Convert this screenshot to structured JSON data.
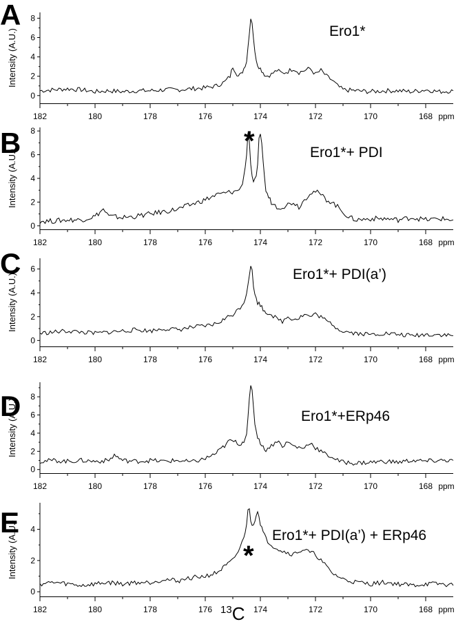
{
  "chart_data": [
    {
      "type": "line",
      "panel": "A",
      "title": "Ero1*",
      "ylabel": "Intensity (A.U.)",
      "x_unit": "ppm",
      "xlim": [
        182,
        167
      ],
      "ylim": [
        -0.8,
        8.6
      ],
      "yticks": [
        0,
        2,
        4,
        6,
        8
      ],
      "xticks": [
        182,
        180,
        178,
        176,
        174,
        172,
        170,
        168
      ],
      "marker": "",
      "series": [
        {
          "x": [
            182,
            181.5,
            181,
            180.5,
            180,
            179.5,
            179,
            178.5,
            178,
            177.5,
            177,
            176.5,
            176,
            175.6,
            175.3,
            175.1,
            175.0,
            174.9,
            174.8,
            174.7,
            174.6,
            174.5,
            174.45,
            174.4,
            174.35,
            174.3,
            174.25,
            174.2,
            174.1,
            174.0,
            173.9,
            173.8,
            173.6,
            173.4,
            173.2,
            173.0,
            172.8,
            172.6,
            172.4,
            172.2,
            172.0,
            171.8,
            171.6,
            171.4,
            171.2,
            171.0,
            170.5,
            170,
            169.5,
            169,
            168.5,
            168,
            167.5,
            167
          ],
          "y": [
            0.5,
            0.6,
            0.7,
            0.6,
            0.4,
            0.5,
            0.4,
            0.5,
            0.5,
            0.6,
            0.6,
            0.7,
            0.8,
            1.0,
            1.4,
            2.0,
            3.0,
            2.5,
            2.0,
            2.2,
            2.8,
            3.6,
            5.0,
            6.6,
            8.0,
            7.6,
            6.0,
            4.4,
            3.2,
            2.8,
            2.4,
            2.0,
            2.2,
            2.6,
            2.3,
            2.5,
            2.8,
            2.4,
            2.6,
            2.8,
            2.2,
            2.6,
            2.0,
            1.6,
            1.0,
            0.6,
            0.5,
            0.4,
            0.5,
            0.5,
            0.4,
            0.6,
            0.4,
            0.5
          ]
        }
      ]
    },
    {
      "type": "line",
      "panel": "B",
      "title": "Ero1*+ PDI",
      "ylabel": "Intensity (A.U.)",
      "x_unit": "ppm",
      "xlim": [
        182,
        167
      ],
      "ylim": [
        -0.3,
        8.3
      ],
      "yticks": [
        0,
        2,
        4,
        6,
        8
      ],
      "xticks": [
        182,
        180,
        178,
        176,
        174,
        172,
        170,
        168
      ],
      "marker": "*",
      "series": [
        {
          "x": [
            182,
            181.5,
            181,
            180.5,
            180,
            179.7,
            179.5,
            179,
            178.5,
            178,
            177.5,
            177,
            176.5,
            176.0,
            175.6,
            175.2,
            174.9,
            174.7,
            174.6,
            174.5,
            174.45,
            174.4,
            174.35,
            174.3,
            174.25,
            174.2,
            174.15,
            174.1,
            174.05,
            174.0,
            173.95,
            173.9,
            173.85,
            173.8,
            173.7,
            173.6,
            173.4,
            173.2,
            173.0,
            172.8,
            172.6,
            172.4,
            172.2,
            172.0,
            171.8,
            171.6,
            171.4,
            171.2,
            171.0,
            170.8,
            170.5,
            170,
            169.5,
            169,
            168.5,
            168,
            167.5,
            167
          ],
          "y": [
            0.4,
            0.4,
            0.5,
            0.5,
            0.8,
            1.4,
            0.8,
            0.7,
            0.8,
            1.0,
            1.2,
            1.4,
            1.8,
            2.2,
            2.6,
            2.8,
            2.9,
            3.2,
            4.2,
            6.0,
            7.8,
            7.2,
            5.0,
            4.0,
            3.8,
            3.8,
            4.0,
            5.0,
            7.2,
            7.9,
            7.0,
            5.5,
            4.0,
            3.0,
            2.4,
            2.0,
            1.6,
            1.6,
            1.8,
            2.0,
            1.6,
            2.2,
            2.8,
            2.9,
            2.6,
            2.2,
            2.0,
            1.6,
            1.2,
            0.7,
            0.5,
            0.6,
            0.6,
            0.5,
            0.7,
            0.5,
            0.6,
            0.5
          ]
        }
      ]
    },
    {
      "type": "line",
      "panel": "C",
      "title": "Ero1*+ PDI(a’)",
      "ylabel": "Intensity (A.U.)",
      "x_unit": "ppm",
      "xlim": [
        182,
        167
      ],
      "ylim": [
        -0.5,
        6.9
      ],
      "yticks": [
        0,
        2,
        4,
        6
      ],
      "xticks": [
        182,
        180,
        178,
        176,
        174,
        172,
        170,
        168
      ],
      "marker": "",
      "series": [
        {
          "x": [
            182,
            181.5,
            181,
            180.5,
            180,
            179.5,
            179,
            178.5,
            178,
            177.5,
            177,
            176.5,
            176,
            175.6,
            175.3,
            175.0,
            174.8,
            174.6,
            174.5,
            174.4,
            174.35,
            174.3,
            174.25,
            174.2,
            174.1,
            174.0,
            173.9,
            173.8,
            173.6,
            173.4,
            173.2,
            173.0,
            172.8,
            172.6,
            172.4,
            172.2,
            172.0,
            171.8,
            171.6,
            171.4,
            171.2,
            171.0,
            170.5,
            170,
            169.5,
            169,
            168.5,
            168,
            167.5,
            167
          ],
          "y": [
            0.6,
            0.7,
            0.8,
            0.7,
            0.6,
            0.7,
            0.8,
            0.9,
            0.8,
            1.0,
            0.9,
            1.1,
            1.2,
            1.4,
            1.8,
            2.2,
            2.6,
            3.2,
            4.0,
            5.6,
            6.3,
            5.8,
            4.6,
            3.8,
            3.2,
            3.0,
            2.6,
            2.4,
            2.2,
            1.8,
            1.6,
            2.0,
            1.8,
            1.9,
            2.2,
            2.0,
            2.2,
            2.0,
            1.6,
            1.4,
            1.0,
            0.8,
            0.6,
            0.5,
            0.6,
            0.5,
            0.4,
            0.5,
            0.5,
            0.4
          ]
        }
      ]
    },
    {
      "type": "line",
      "panel": "D",
      "title": "Ero1*+ERp46",
      "ylabel": "Intensity (A.U.)",
      "x_unit": "ppm",
      "xlim": [
        182,
        167
      ],
      "ylim": [
        -0.4,
        9.6
      ],
      "yticks": [
        0,
        2,
        4,
        6,
        8
      ],
      "xticks": [
        182,
        180,
        178,
        176,
        174,
        172,
        170,
        168
      ],
      "marker": "",
      "series": [
        {
          "x": [
            182,
            181.5,
            181,
            180.5,
            180,
            179.5,
            179.3,
            179,
            178.5,
            178,
            177.5,
            177,
            176.5,
            176,
            175.6,
            175.3,
            175.1,
            174.9,
            174.7,
            174.6,
            174.5,
            174.45,
            174.4,
            174.35,
            174.3,
            174.25,
            174.2,
            174.1,
            174.0,
            173.9,
            173.8,
            173.6,
            173.4,
            173.2,
            173.0,
            172.8,
            172.6,
            172.4,
            172.2,
            172.0,
            171.8,
            171.6,
            171.4,
            171.2,
            171.0,
            170.5,
            170,
            169.5,
            169,
            168.5,
            168,
            167.5,
            167
          ],
          "y": [
            0.9,
            1.0,
            0.9,
            1.0,
            0.9,
            1.0,
            1.6,
            1.0,
            0.9,
            1.0,
            0.9,
            1.0,
            0.8,
            1.2,
            1.8,
            2.6,
            3.2,
            3.0,
            2.8,
            3.2,
            4.0,
            5.6,
            7.6,
            9.1,
            8.6,
            7.0,
            5.0,
            3.6,
            3.0,
            2.4,
            2.2,
            2.6,
            3.2,
            2.6,
            3.0,
            2.6,
            2.4,
            2.4,
            3.0,
            2.4,
            2.0,
            1.6,
            1.4,
            1.0,
            0.8,
            0.7,
            0.8,
            0.9,
            0.8,
            1.0,
            0.9,
            1.0,
            1.0
          ]
        }
      ]
    },
    {
      "type": "line",
      "panel": "E",
      "title": "Ero1*+ PDI(a’) + ERp46",
      "ylabel": "Intensity (A.U.)",
      "x_unit": "ppm",
      "xlim": [
        182,
        167
      ],
      "ylim": [
        -0.3,
        5.7
      ],
      "yticks": [
        0,
        2,
        4
      ],
      "xticks": [
        182,
        180,
        178,
        176,
        174,
        172,
        170,
        168
      ],
      "marker": "*",
      "series": [
        {
          "x": [
            182,
            181.5,
            181,
            180.5,
            180,
            179.5,
            179,
            178.5,
            178,
            177.5,
            177,
            176.5,
            176,
            175.6,
            175.3,
            175.0,
            174.8,
            174.6,
            174.5,
            174.45,
            174.4,
            174.35,
            174.3,
            174.25,
            174.2,
            174.15,
            174.1,
            174.05,
            174.0,
            173.9,
            173.8,
            173.6,
            173.4,
            173.2,
            173.0,
            172.8,
            172.6,
            172.4,
            172.2,
            172.0,
            171.8,
            171.6,
            171.4,
            171.2,
            171.0,
            170.5,
            170,
            169.5,
            169,
            168.5,
            168,
            167.5,
            167
          ],
          "y": [
            0.5,
            0.6,
            0.5,
            0.4,
            0.5,
            0.6,
            0.5,
            0.6,
            0.6,
            0.8,
            0.7,
            0.9,
            1.0,
            1.2,
            1.6,
            2.0,
            2.6,
            3.4,
            4.4,
            5.3,
            5.2,
            4.6,
            4.2,
            4.4,
            4.6,
            5.0,
            5.2,
            4.8,
            4.4,
            3.8,
            3.4,
            3.0,
            2.8,
            2.6,
            2.5,
            2.4,
            2.6,
            2.7,
            2.5,
            2.4,
            2.0,
            1.6,
            1.2,
            1.0,
            0.8,
            0.6,
            0.5,
            0.6,
            0.5,
            0.4,
            0.5,
            0.5,
            0.4
          ]
        }
      ]
    }
  ],
  "x_title": {
    "sup": "13",
    "main": "C"
  }
}
